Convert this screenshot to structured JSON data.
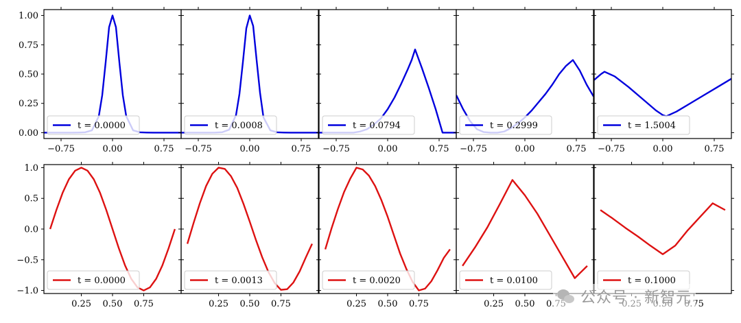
{
  "watermark": {
    "text": "公众号 · 新智元",
    "icon": "wechat-icon"
  },
  "chart_data": [
    {
      "type": "line",
      "row": 0,
      "col": 0,
      "color": "#0000dd",
      "legend": "t = 0.0000",
      "legend_placement": "lower-left",
      "xlim": [
        -1,
        1
      ],
      "ylim": [
        -0.05,
        1.05
      ],
      "xticks": [
        -0.75,
        0.0,
        0.75
      ],
      "xtick_labels": [
        "−0.75",
        "0.00",
        "0.75"
      ],
      "yticks": [
        0.0,
        0.25,
        0.5,
        0.75,
        1.0
      ],
      "ytick_labels": [
        "0.00",
        "0.25",
        "0.50",
        "0.75",
        "1.00"
      ],
      "x": [
        -1.0,
        -0.6,
        -0.5,
        -0.4,
        -0.3,
        -0.2,
        -0.15,
        -0.1,
        -0.05,
        0.0,
        0.05,
        0.1,
        0.15,
        0.2,
        0.3,
        0.4,
        0.5,
        0.6,
        1.0
      ],
      "y": [
        0,
        0,
        0.001,
        0.003,
        0.02,
        0.14,
        0.32,
        0.6,
        0.9,
        1.0,
        0.9,
        0.6,
        0.32,
        0.14,
        0.02,
        0.003,
        0.001,
        0,
        0
      ]
    },
    {
      "type": "line",
      "row": 0,
      "col": 1,
      "color": "#0000dd",
      "legend": "t = 0.0008",
      "legend_placement": "lower-left",
      "xlim": [
        -1,
        1
      ],
      "ylim": [
        -0.05,
        1.05
      ],
      "xticks": [
        -0.75,
        0.0,
        0.75
      ],
      "xtick_labels": [
        "−0.75",
        "0.00",
        "0.75"
      ],
      "yticks": [
        0.0,
        0.25,
        0.5,
        0.75,
        1.0
      ],
      "ytick_labels": [
        "",
        "",
        "",
        "",
        ""
      ],
      "x": [
        -1.0,
        -0.6,
        -0.5,
        -0.4,
        -0.3,
        -0.2,
        -0.15,
        -0.1,
        -0.05,
        0.0,
        0.05,
        0.1,
        0.15,
        0.2,
        0.3,
        0.4,
        0.5,
        0.6,
        1.0
      ],
      "y": [
        0,
        0,
        0.001,
        0.004,
        0.025,
        0.15,
        0.33,
        0.6,
        0.89,
        1.0,
        0.91,
        0.62,
        0.34,
        0.13,
        0.02,
        0.003,
        0.001,
        0,
        0
      ]
    },
    {
      "type": "line",
      "row": 0,
      "col": 2,
      "color": "#0000dd",
      "legend": "t = 0.0794",
      "legend_placement": "lower-left",
      "xlim": [
        -1,
        1
      ],
      "ylim": [
        -0.05,
        1.05
      ],
      "xticks": [
        -0.75,
        0.0,
        0.75
      ],
      "xtick_labels": [
        "−0.75",
        "0.00",
        "0.75"
      ],
      "yticks": [
        0.0,
        0.25,
        0.5,
        0.75,
        1.0
      ],
      "ytick_labels": [
        "",
        "",
        "",
        "",
        ""
      ],
      "x": [
        -1.0,
        -0.5,
        -0.4,
        -0.3,
        -0.2,
        -0.1,
        0.0,
        0.1,
        0.2,
        0.3,
        0.35,
        0.4,
        0.5,
        0.6,
        0.7,
        0.75,
        0.8,
        1.0
      ],
      "y": [
        0,
        0,
        0.01,
        0.03,
        0.07,
        0.12,
        0.2,
        0.3,
        0.42,
        0.55,
        0.62,
        0.71,
        0.55,
        0.38,
        0.2,
        0.1,
        0,
        0
      ]
    },
    {
      "type": "line",
      "row": 0,
      "col": 3,
      "color": "#0000dd",
      "legend": "t = 0.2999",
      "legend_placement": "lower-left",
      "xlim": [
        -1,
        1
      ],
      "ylim": [
        -0.05,
        1.05
      ],
      "xticks": [
        -0.75,
        0.0,
        0.75
      ],
      "xtick_labels": [
        "−0.75",
        "0.00",
        "0.75"
      ],
      "yticks": [
        0.0,
        0.25,
        0.5,
        0.75,
        1.0
      ],
      "ytick_labels": [
        "",
        "",
        "",
        "",
        ""
      ],
      "x": [
        -1.0,
        -0.9,
        -0.8,
        -0.7,
        -0.6,
        -0.5,
        -0.4,
        -0.3,
        -0.2,
        -0.1,
        0.0,
        0.1,
        0.2,
        0.3,
        0.4,
        0.5,
        0.6,
        0.7,
        0.8,
        0.9,
        1.0
      ],
      "y": [
        0.32,
        0.2,
        0.1,
        0.03,
        0.005,
        0.0,
        0.0,
        0.01,
        0.04,
        0.08,
        0.13,
        0.19,
        0.26,
        0.33,
        0.41,
        0.5,
        0.57,
        0.62,
        0.53,
        0.41,
        0.31
      ]
    },
    {
      "type": "line",
      "row": 0,
      "col": 4,
      "color": "#0000dd",
      "legend": "t = 1.5004",
      "legend_placement": "lower-left",
      "xlim": [
        -1,
        1
      ],
      "ylim": [
        -0.05,
        1.05
      ],
      "xticks": [
        -0.75,
        0.0,
        0.75
      ],
      "xtick_labels": [
        "−0.75",
        "0.00",
        "0.75"
      ],
      "yticks": [
        0.0,
        0.25,
        0.5,
        0.75,
        1.0
      ],
      "ytick_labels": [
        "",
        "",
        "",
        "",
        ""
      ],
      "x": [
        -1.0,
        -0.9,
        -0.85,
        -0.7,
        -0.5,
        -0.3,
        -0.1,
        0.0,
        0.05,
        0.2,
        0.4,
        0.6,
        0.8,
        1.0
      ],
      "y": [
        0.45,
        0.5,
        0.52,
        0.48,
        0.39,
        0.29,
        0.19,
        0.15,
        0.14,
        0.18,
        0.25,
        0.32,
        0.39,
        0.46
      ]
    },
    {
      "type": "line",
      "row": 1,
      "col": 0,
      "color": "#dd1111",
      "legend": "t = 0.0000",
      "legend_placement": "lower-left",
      "xlim": [
        -0.05,
        1.05
      ],
      "ylim": [
        -1.05,
        1.05
      ],
      "xticks": [
        0.25,
        0.5,
        0.75
      ],
      "xtick_labels": [
        "0.25",
        "0.50",
        "0.75"
      ],
      "yticks": [
        -1.0,
        -0.5,
        0.0,
        0.5,
        1.0
      ],
      "ytick_labels": [
        "−1.0",
        "−0.5",
        "0.0",
        "0.5",
        "1.0"
      ],
      "x": [
        0.0,
        0.05,
        0.1,
        0.15,
        0.2,
        0.25,
        0.3,
        0.35,
        0.4,
        0.45,
        0.5,
        0.55,
        0.6,
        0.65,
        0.7,
        0.75,
        0.8,
        0.85,
        0.9,
        0.95,
        1.0
      ],
      "y": [
        0.0,
        0.31,
        0.59,
        0.81,
        0.95,
        1.0,
        0.95,
        0.81,
        0.59,
        0.31,
        0.0,
        -0.31,
        -0.59,
        -0.81,
        -0.95,
        -1.0,
        -0.95,
        -0.81,
        -0.59,
        -0.31,
        0.0
      ]
    },
    {
      "type": "line",
      "row": 1,
      "col": 1,
      "color": "#dd1111",
      "legend": "t = 0.0013",
      "legend_placement": "lower-left",
      "xlim": [
        -0.05,
        1.05
      ],
      "ylim": [
        -1.05,
        1.05
      ],
      "xticks": [
        0.25,
        0.5,
        0.75
      ],
      "xtick_labels": [
        "0.25",
        "0.50",
        "0.75"
      ],
      "yticks": [
        -1.0,
        -0.5,
        0.0,
        0.5,
        1.0
      ],
      "ytick_labels": [
        "",
        "",
        "",
        "",
        ""
      ],
      "x": [
        0.0,
        0.05,
        0.1,
        0.15,
        0.2,
        0.25,
        0.3,
        0.35,
        0.4,
        0.45,
        0.5,
        0.55,
        0.6,
        0.65,
        0.7,
        0.75,
        0.8,
        0.85,
        0.9,
        0.95,
        1.0
      ],
      "y": [
        -0.24,
        0.1,
        0.42,
        0.7,
        0.9,
        1.0,
        0.98,
        0.86,
        0.67,
        0.41,
        0.12,
        -0.18,
        -0.46,
        -0.7,
        -0.88,
        -0.99,
        -0.98,
        -0.87,
        -0.69,
        -0.46,
        -0.24
      ]
    },
    {
      "type": "line",
      "row": 1,
      "col": 2,
      "color": "#dd1111",
      "legend": "t = 0.0020",
      "legend_placement": "lower-left",
      "xlim": [
        -0.05,
        1.05
      ],
      "ylim": [
        -1.05,
        1.05
      ],
      "xticks": [
        0.25,
        0.5,
        0.75
      ],
      "xtick_labels": [
        "0.25",
        "0.50",
        "0.75"
      ],
      "yticks": [
        -1.0,
        -0.5,
        0.0,
        0.5,
        1.0
      ],
      "ytick_labels": [
        "",
        "",
        "",
        "",
        ""
      ],
      "x": [
        0.0,
        0.05,
        0.1,
        0.15,
        0.2,
        0.25,
        0.3,
        0.35,
        0.4,
        0.45,
        0.5,
        0.55,
        0.6,
        0.65,
        0.7,
        0.75,
        0.8,
        0.85,
        0.9,
        0.95,
        1.0
      ],
      "y": [
        -0.33,
        0.01,
        0.32,
        0.6,
        0.82,
        1.0,
        0.97,
        0.87,
        0.7,
        0.47,
        0.2,
        -0.1,
        -0.4,
        -0.65,
        -0.86,
        -1.0,
        -0.97,
        -0.85,
        -0.67,
        -0.47,
        -0.33
      ]
    },
    {
      "type": "line",
      "row": 1,
      "col": 3,
      "color": "#dd1111",
      "legend": "t = 0.0100",
      "legend_placement": "lower-left",
      "xlim": [
        -0.05,
        1.05
      ],
      "ylim": [
        -1.05,
        1.05
      ],
      "xticks": [
        0.25,
        0.5,
        0.75
      ],
      "xtick_labels": [
        "0.25",
        "0.50",
        "0.75"
      ],
      "yticks": [
        -1.0,
        -0.5,
        0.0,
        0.5,
        1.0
      ],
      "ytick_labels": [
        "",
        "",
        "",
        "",
        ""
      ],
      "x": [
        0.0,
        0.1,
        0.2,
        0.3,
        0.4,
        0.5,
        0.6,
        0.7,
        0.8,
        0.9,
        0.95,
        1.0
      ],
      "y": [
        -0.6,
        -0.3,
        0.03,
        0.41,
        0.8,
        0.55,
        0.25,
        -0.1,
        -0.45,
        -0.8,
        -0.7,
        -0.6
      ]
    },
    {
      "type": "line",
      "row": 1,
      "col": 4,
      "color": "#dd1111",
      "legend": "t = 0.1000",
      "legend_placement": "lower-left",
      "xlim": [
        -0.05,
        1.05
      ],
      "ylim": [
        -1.05,
        1.05
      ],
      "xticks": [
        0.25,
        0.5,
        0.75
      ],
      "xtick_labels": [
        "0.25",
        "0.50",
        "0.75"
      ],
      "yticks": [
        -1.0,
        -0.5,
        0.0,
        0.5,
        1.0
      ],
      "ytick_labels": [
        "",
        "",
        "",
        "",
        ""
      ],
      "x": [
        0.0,
        0.1,
        0.2,
        0.3,
        0.4,
        0.5,
        0.6,
        0.7,
        0.8,
        0.9,
        1.0
      ],
      "y": [
        0.31,
        0.17,
        0.02,
        -0.12,
        -0.27,
        -0.41,
        -0.27,
        -0.02,
        0.2,
        0.42,
        0.31
      ]
    }
  ]
}
